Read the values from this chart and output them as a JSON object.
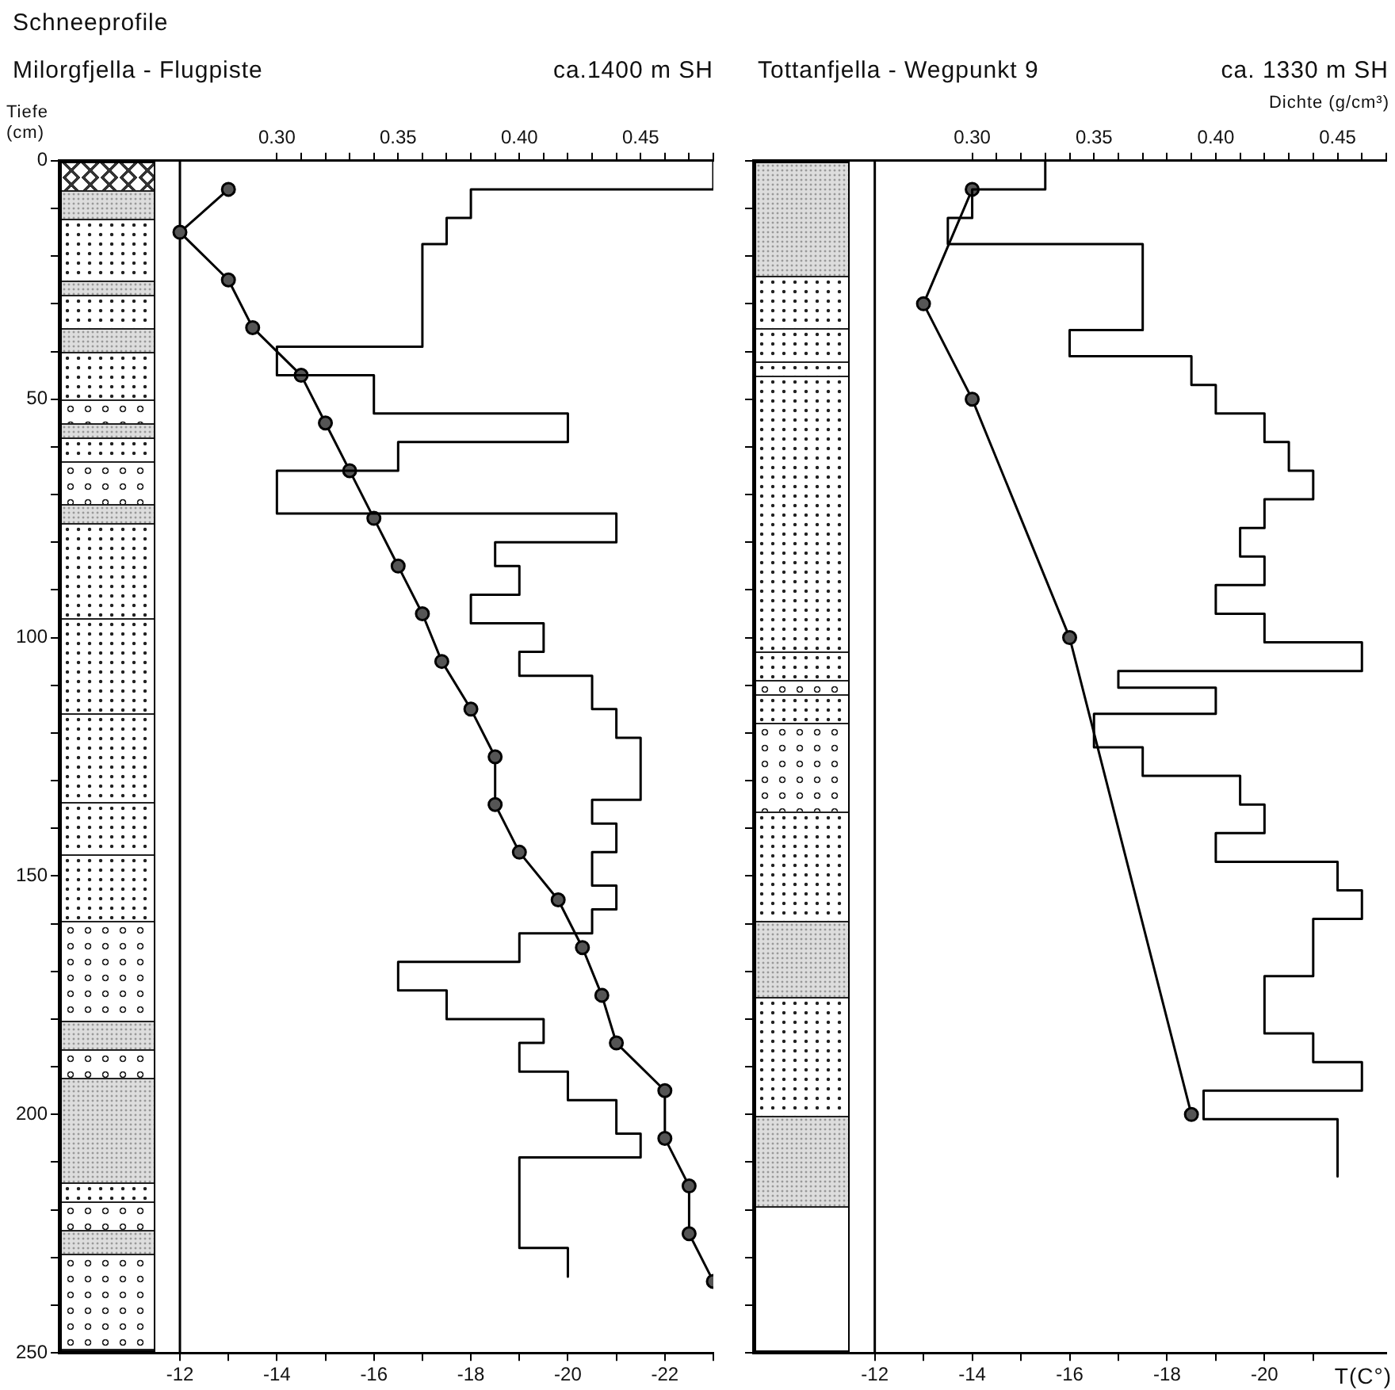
{
  "chart_data": [
    {
      "type": "line",
      "title": "Milorgfjella - Flugpiste",
      "subtitle": "ca.1400 m SH",
      "ylabel": "Tiefe (cm)",
      "annotations": [
        "Schneeprofile"
      ],
      "xlim": [
        -9.5,
        -23
      ],
      "xticks": [
        -12,
        {
          "value": -13,
          "label": null
        },
        -14,
        {
          "value": -15,
          "label": null
        },
        -16,
        {
          "value": -17,
          "label": null
        },
        -18,
        {
          "value": -19,
          "label": null
        },
        -20,
        {
          "value": -21,
          "label": null
        },
        -22,
        {
          "value": -23,
          "label": null
        }
      ],
      "x2lim": [
        0.21,
        0.48
      ],
      "x2ticks": [
        {
          "value": 0.3,
          "label": "0.30"
        },
        {
          "value": 0.31,
          "label": null
        },
        {
          "value": 0.32,
          "label": null
        },
        {
          "value": 0.33,
          "label": null
        },
        {
          "value": 0.34,
          "label": null
        },
        {
          "value": 0.35,
          "label": "0.35"
        },
        {
          "value": 0.36,
          "label": null
        },
        {
          "value": 0.37,
          "label": null
        },
        {
          "value": 0.38,
          "label": null
        },
        {
          "value": 0.39,
          "label": null
        },
        {
          "value": 0.4,
          "label": "0.40"
        },
        {
          "value": 0.41,
          "label": null
        },
        {
          "value": 0.42,
          "label": null
        },
        {
          "value": 0.43,
          "label": null
        },
        {
          "value": 0.44,
          "label": null
        },
        {
          "value": 0.45,
          "label": "0.45"
        },
        {
          "value": 0.46,
          "label": null
        },
        {
          "value": 0.47,
          "label": null
        },
        {
          "value": 0.48,
          "label": null
        }
      ],
      "ylim": [
        250,
        0
      ],
      "yticks": [
        0,
        {
          "value": 10,
          "label": null
        },
        {
          "value": 20,
          "label": null
        },
        {
          "value": 30,
          "label": null
        },
        {
          "value": 40,
          "label": null
        },
        50,
        {
          "value": 60,
          "label": null
        },
        {
          "value": 70,
          "label": null
        },
        {
          "value": 80,
          "label": null
        },
        {
          "value": 90,
          "label": null
        },
        100,
        {
          "value": 110,
          "label": null
        },
        {
          "value": 120,
          "label": null
        },
        {
          "value": 130,
          "label": null
        },
        {
          "value": 140,
          "label": null
        },
        150,
        {
          "value": 160,
          "label": null
        },
        {
          "value": 170,
          "label": null
        },
        {
          "value": 180,
          "label": null
        },
        {
          "value": 190,
          "label": null
        },
        200,
        {
          "value": 210,
          "label": null
        },
        {
          "value": 220,
          "label": null
        },
        {
          "value": 230,
          "label": null
        },
        {
          "value": 240,
          "label": null
        },
        250
      ],
      "ref_lines": [
        {
          "axis": "x",
          "value": -12
        }
      ],
      "series": [
        {
          "type": "line",
          "axis": "x2",
          "color": "#000000",
          "marker": "none",
          "x": [
            0.48,
            0.48,
            0.38,
            0.38,
            0.37,
            0.37,
            0.36,
            0.36,
            0.3,
            0.3,
            0.34,
            0.34,
            0.42,
            0.42,
            0.35,
            0.35,
            0.3,
            0.3,
            0.44,
            0.44,
            0.39,
            0.39,
            0.4,
            0.4,
            0.38,
            0.38,
            0.41,
            0.41,
            0.4,
            0.4,
            0.43,
            0.43,
            0.44,
            0.44,
            0.45,
            0.45,
            0.43,
            0.43,
            0.44,
            0.44,
            0.43,
            0.43,
            0.44,
            0.44,
            0.43,
            0.43,
            0.4,
            0.4,
            0.35,
            0.35,
            0.37,
            0.37,
            0.41,
            0.41,
            0.4,
            0.4,
            0.42,
            0.42,
            0.44,
            0.44,
            0.45,
            0.45,
            0.4,
            0.4,
            0.42,
            0.42
          ],
          "values": [
            0,
            6,
            6,
            12,
            12,
            17.5,
            17.5,
            39,
            39,
            45,
            45,
            53,
            53,
            59,
            59,
            65,
            65,
            74,
            74,
            80,
            80,
            85,
            85,
            91,
            91,
            97,
            97,
            103,
            103,
            108,
            108,
            115,
            115,
            121,
            121,
            134,
            134,
            139,
            139,
            145,
            145,
            152,
            152,
            157,
            157,
            162,
            162,
            168,
            168,
            174,
            174,
            180,
            180,
            185,
            185,
            191,
            191,
            197,
            197,
            204,
            204,
            209,
            209,
            228,
            228,
            234
          ]
        },
        {
          "type": "line",
          "color": "#000000",
          "marker": "circle",
          "x": [
            -13,
            -12,
            -13,
            -13.5,
            -14.5,
            -15,
            -15.5,
            -16,
            -16.5,
            -17,
            -17.4,
            -18,
            -18.5,
            -18.5,
            -19,
            -19.8,
            -20.3,
            -20.7,
            -21,
            -22,
            -22,
            -22.5,
            -22.5,
            -23
          ],
          "values": [
            6,
            15,
            25,
            35,
            45,
            55,
            65,
            75,
            85,
            95,
            105,
            115,
            125,
            135,
            145,
            155,
            165,
            175,
            185,
            195,
            205,
            215,
            225,
            235
          ]
        }
      ]
    },
    {
      "type": "line",
      "title": "Tottanfjella - Wegpunkt 9",
      "subtitle": "ca. 1330 m SH",
      "xlabel": "T(C°)",
      "x2label": "Dichte (g/cm³)",
      "tick_labels": "x",
      "xlim": [
        -9.5,
        -22.5
      ],
      "xticks": [
        -12,
        {
          "value": -13,
          "label": null
        },
        -14,
        {
          "value": -15,
          "label": null
        },
        -16,
        {
          "value": -17,
          "label": null
        },
        -18,
        {
          "value": -19,
          "label": null
        },
        -20,
        {
          "value": -21,
          "label": null
        }
      ],
      "x2lim": [
        0.21,
        0.47
      ],
      "x2ticks": [
        {
          "value": 0.3,
          "label": "0.30"
        },
        {
          "value": 0.31,
          "label": null
        },
        {
          "value": 0.32,
          "label": null
        },
        {
          "value": 0.33,
          "label": null
        },
        {
          "value": 0.34,
          "label": null
        },
        {
          "value": 0.35,
          "label": "0.35"
        },
        {
          "value": 0.36,
          "label": null
        },
        {
          "value": 0.37,
          "label": null
        },
        {
          "value": 0.38,
          "label": null
        },
        {
          "value": 0.39,
          "label": null
        },
        {
          "value": 0.4,
          "label": "0.40"
        },
        {
          "value": 0.41,
          "label": null
        },
        {
          "value": 0.42,
          "label": null
        },
        {
          "value": 0.43,
          "label": null
        },
        {
          "value": 0.44,
          "label": null
        },
        {
          "value": 0.45,
          "label": "0.45"
        },
        {
          "value": 0.46,
          "label": null
        },
        {
          "value": 0.47,
          "label": null
        }
      ],
      "ylim": [
        250,
        0
      ],
      "yticks": [
        0,
        {
          "value": 10,
          "label": null
        },
        {
          "value": 20,
          "label": null
        },
        {
          "value": 30,
          "label": null
        },
        {
          "value": 40,
          "label": null
        },
        50,
        {
          "value": 60,
          "label": null
        },
        {
          "value": 70,
          "label": null
        },
        {
          "value": 80,
          "label": null
        },
        {
          "value": 90,
          "label": null
        },
        100,
        {
          "value": 110,
          "label": null
        },
        {
          "value": 120,
          "label": null
        },
        {
          "value": 130,
          "label": null
        },
        {
          "value": 140,
          "label": null
        },
        150,
        {
          "value": 160,
          "label": null
        },
        {
          "value": 170,
          "label": null
        },
        {
          "value": 180,
          "label": null
        },
        {
          "value": 190,
          "label": null
        },
        200,
        {
          "value": 210,
          "label": null
        },
        {
          "value": 220,
          "label": null
        },
        {
          "value": 230,
          "label": null
        },
        {
          "value": 240,
          "label": null
        },
        250
      ],
      "ref_lines": [
        {
          "axis": "x",
          "value": -12
        }
      ],
      "series": [
        {
          "type": "line",
          "axis": "x2",
          "color": "#000000",
          "marker": "none",
          "x": [
            0.33,
            0.33,
            0.3,
            0.3,
            0.29,
            0.29,
            0.37,
            0.37,
            0.34,
            0.34,
            0.39,
            0.39,
            0.4,
            0.4,
            0.42,
            0.42,
            0.43,
            0.43,
            0.44,
            0.44,
            0.42,
            0.42,
            0.41,
            0.41,
            0.42,
            0.42,
            0.4,
            0.4,
            0.42,
            0.42,
            0.46,
            0.46,
            0.36,
            0.36,
            0.4,
            0.4,
            0.35,
            0.35,
            0.37,
            0.37,
            0.41,
            0.41,
            0.42,
            0.42,
            0.4,
            0.4,
            0.45,
            0.45,
            0.46,
            0.46,
            0.44,
            0.44,
            0.42,
            0.42,
            0.44,
            0.44,
            0.46,
            0.46,
            0.395,
            0.395,
            0.45,
            0.45
          ],
          "values": [
            0,
            6,
            6,
            12,
            12,
            17.5,
            17.5,
            35.5,
            35.5,
            41,
            41,
            47,
            47,
            53,
            53,
            59,
            59,
            65,
            65,
            71,
            71,
            77,
            77,
            83,
            83,
            89,
            89,
            95,
            95,
            101,
            101,
            107,
            107,
            110.5,
            110.5,
            116,
            116,
            123,
            123,
            129,
            129,
            135,
            135,
            141,
            141,
            147,
            147,
            153,
            153,
            159,
            159,
            171,
            171,
            183,
            183,
            189,
            189,
            195,
            195,
            201,
            201,
            213
          ]
        },
        {
          "type": "line",
          "color": "#000000",
          "marker": "circle",
          "x": [
            -14,
            -13,
            -14,
            -16,
            -18.5
          ],
          "values": [
            6,
            30,
            50,
            100,
            200
          ]
        }
      ]
    }
  ]
}
